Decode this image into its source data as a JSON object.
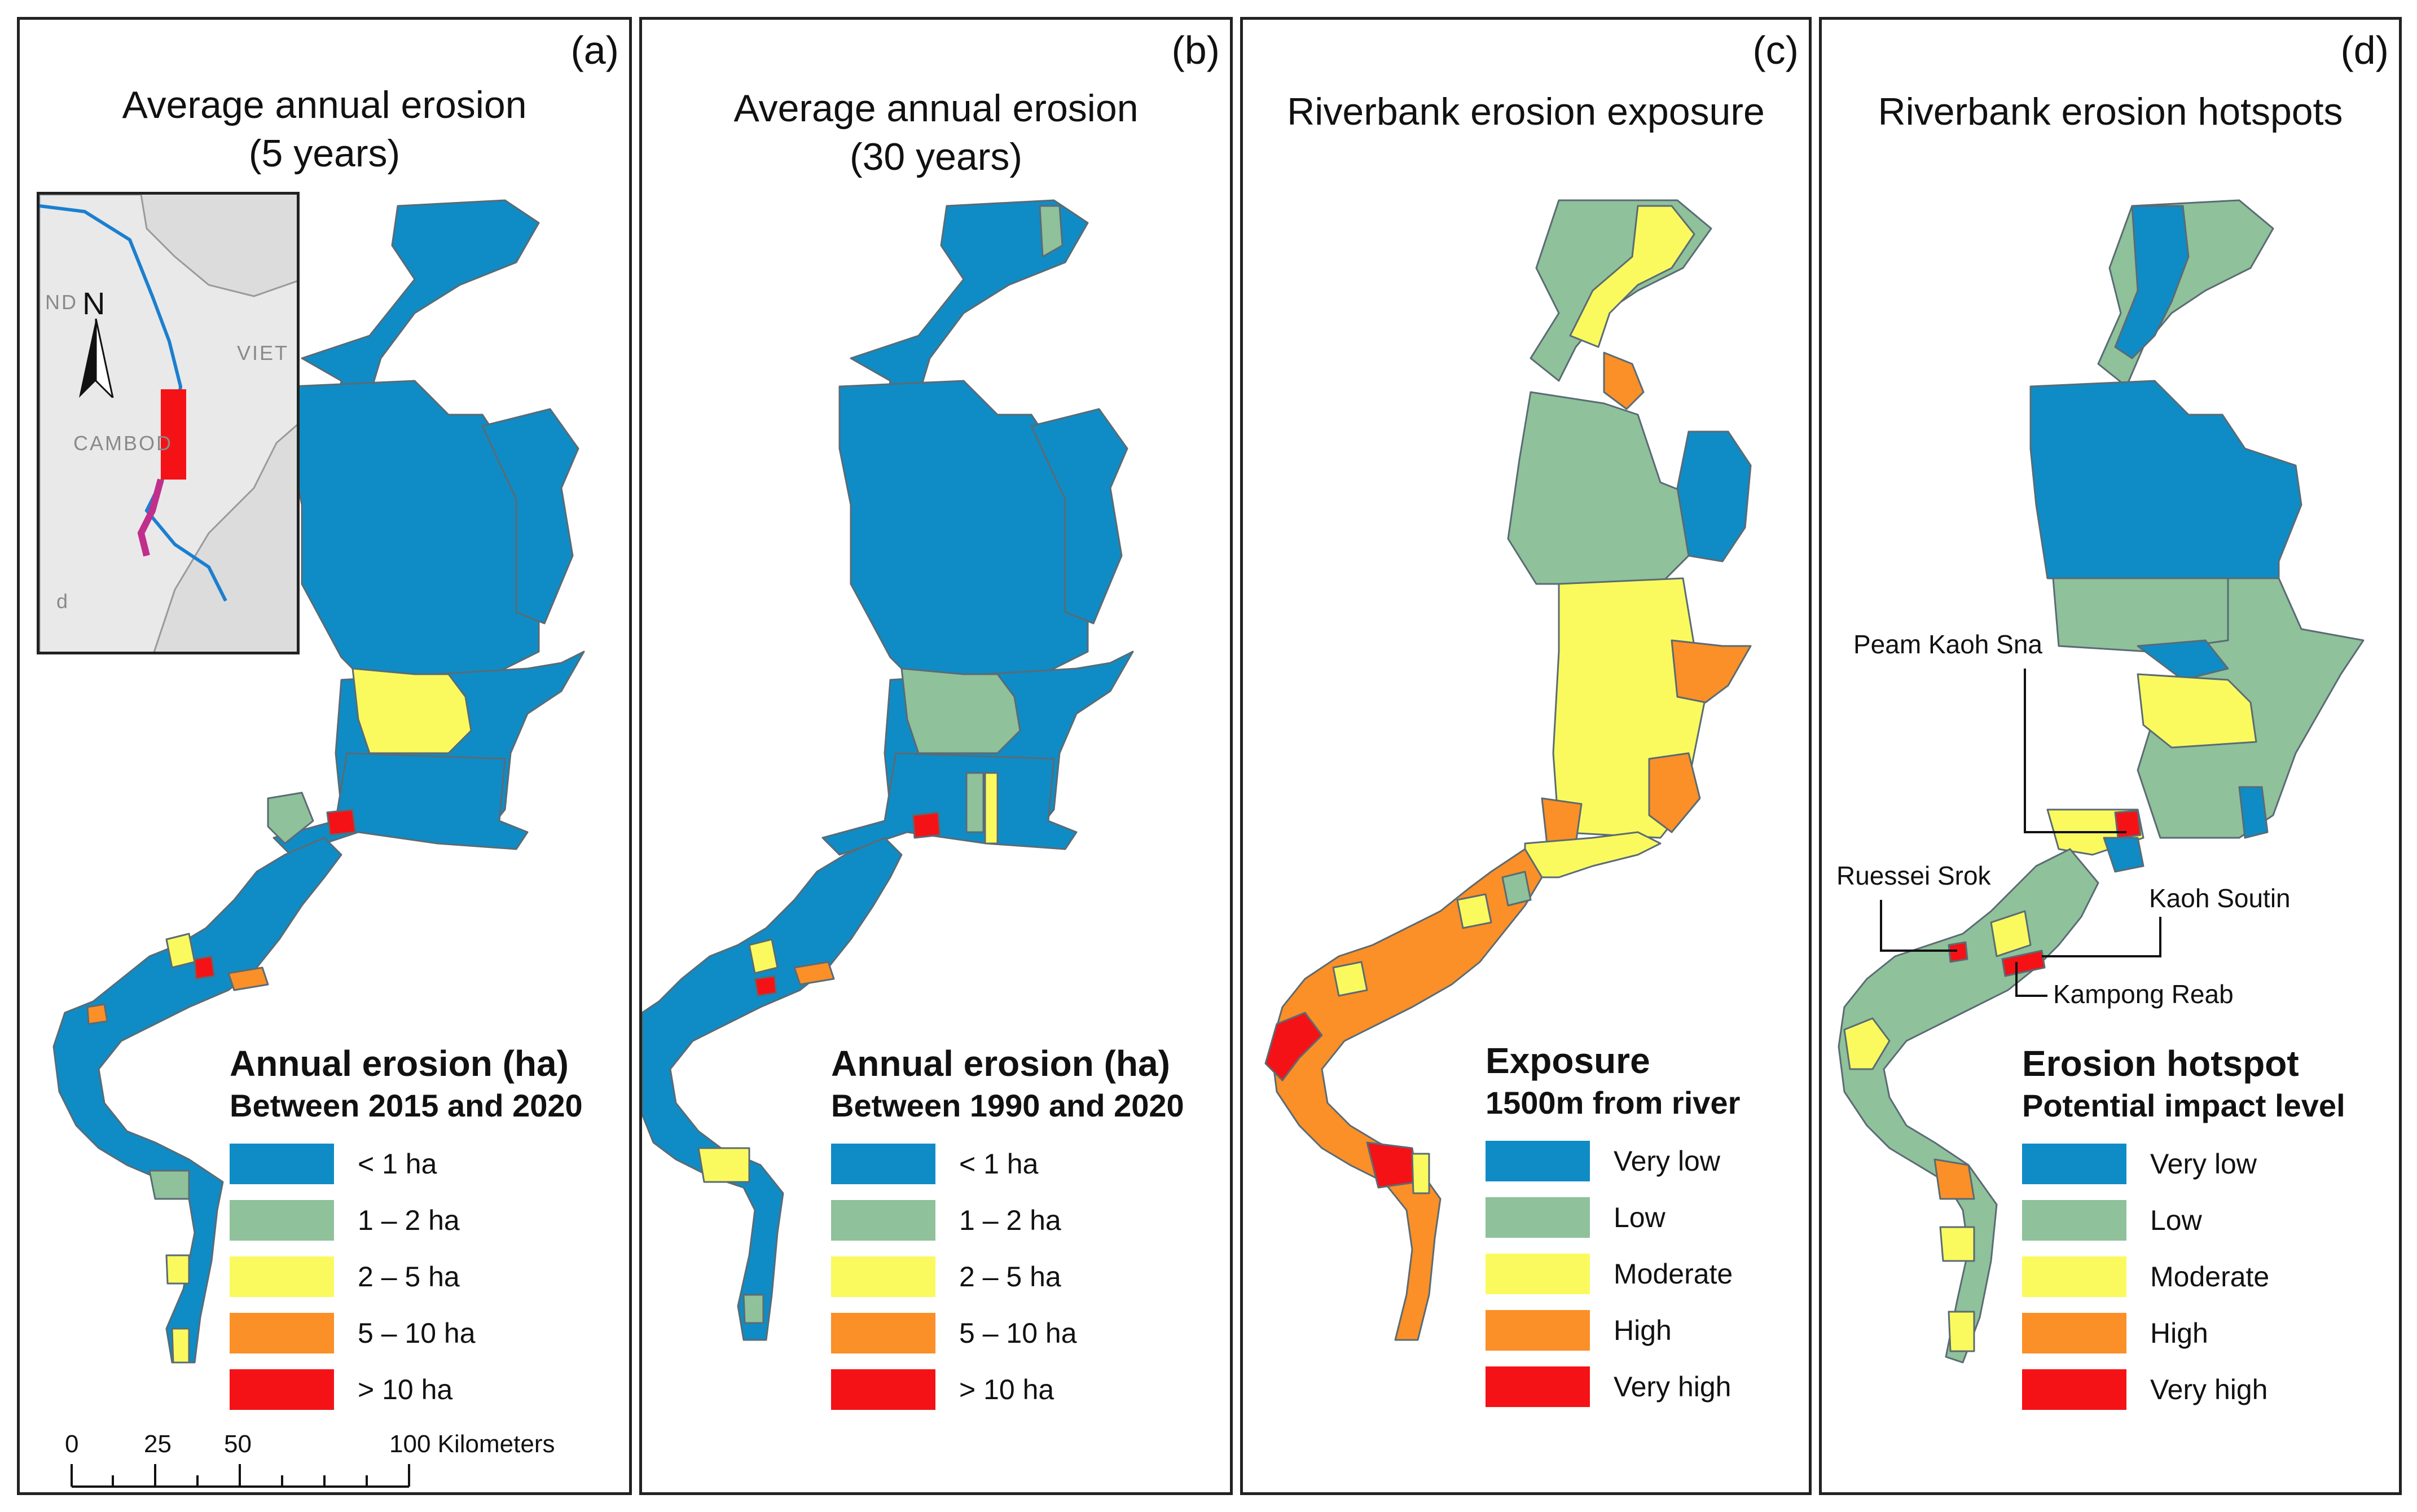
{
  "colors": {
    "very_low": "#0f8cc6",
    "low": "#8fc19b",
    "moderate": "#fafa5f",
    "high": "#fb8f28",
    "very_high": "#f41217",
    "border": "#5a6b74"
  },
  "panels": [
    {
      "label": "(a)",
      "title_lines": [
        "Average annual erosion",
        "(5 years)"
      ],
      "legend_title": "Annual erosion (ha)",
      "legend_subtitle": "Between 2015 and 2020",
      "legend_items": [
        "< 1 ha",
        "1 – 2 ha",
        "2 – 5 ha",
        "5 – 10 ha",
        "> 10 ha"
      ]
    },
    {
      "label": "(b)",
      "title_lines": [
        "Average annual erosion",
        "(30 years)"
      ],
      "legend_title": "Annual erosion (ha)",
      "legend_subtitle": "Between 1990 and 2020",
      "legend_items": [
        "< 1 ha",
        "1 – 2 ha",
        "2 – 5 ha",
        "5 – 10 ha",
        "> 10 ha"
      ]
    },
    {
      "label": "(c)",
      "title_lines": [
        "Riverbank erosion exposure"
      ],
      "legend_title": "Exposure",
      "legend_subtitle": "1500m from river",
      "legend_items": [
        "Very low",
        "Low",
        "Moderate",
        "High",
        "Very high"
      ]
    },
    {
      "label": "(d)",
      "title_lines": [
        "Riverbank erosion hotspots"
      ],
      "legend_title": "Erosion hotspot",
      "legend_subtitle": "Potential impact level",
      "legend_items": [
        "Very low",
        "Low",
        "Moderate",
        "High",
        "Very high"
      ],
      "callouts": [
        "Peam Kaoh Sna",
        "Ruessei Srok",
        "Kaoh Soutin",
        "Kampong Reab"
      ]
    }
  ],
  "inset": {
    "north": "N",
    "labels": [
      "ND",
      "VIET",
      "CAMBOD",
      "d"
    ]
  },
  "scale": {
    "ticks": [
      "0",
      "25",
      "50",
      "100 Kilometers"
    ]
  }
}
